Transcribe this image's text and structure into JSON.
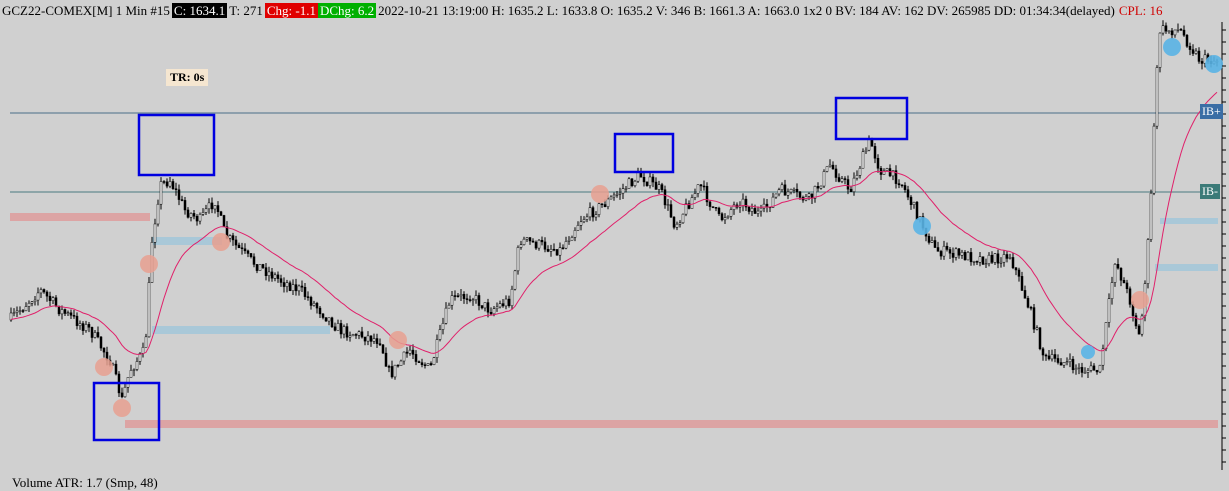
{
  "header": {
    "symbol": "GCZ22-COMEX[M]  1 Min  #15",
    "close": "C: 1634.1",
    "ticks": "T: 271",
    "change": "Chg: -1.1",
    "daily_change": "DChg: 6.2",
    "details": "2022-10-21 13:19:00 H: 1635.2 L: 1633.8 O: 1635.2 V: 346 B: 1661.3 A: 1663.0 1x2 0 BV: 184 AV: 162 DV: 265985 DD: 01:34:34(delayed)",
    "cpl": "CPL: 16"
  },
  "labels": {
    "timer": "TR: 0s",
    "ib_high": "IB+",
    "ib_low": "IB-"
  },
  "footer": {
    "study": "Volume  ATR: 1.7   (Smp, 48)"
  }
}
